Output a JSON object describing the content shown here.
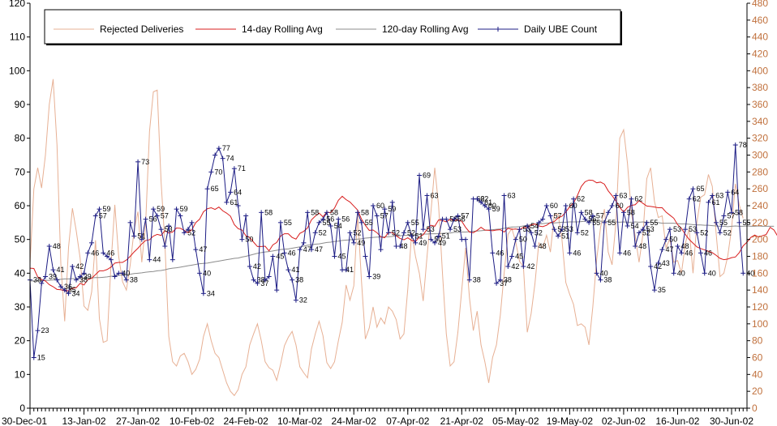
{
  "chart_data": {
    "type": "line",
    "title": "",
    "xlabel": "",
    "ylabel": "",
    "ylabel_right": "",
    "grid": "none",
    "legend": "top-left",
    "colors": {
      "rejected": "#e7b094",
      "rolling14": "#d81e1e",
      "rolling120": "#8c8c8c",
      "ube": "#1c1c84",
      "right_axis": "#c0703c",
      "frame": "#000000"
    },
    "left_axis": {
      "min": 0,
      "max": 120,
      "ticks": [
        0,
        10,
        20,
        30,
        40,
        50,
        60,
        70,
        80,
        90,
        100,
        110,
        120
      ]
    },
    "right_axis": {
      "min": 0,
      "max": 480,
      "ticks": [
        0,
        20,
        40,
        60,
        80,
        100,
        120,
        140,
        160,
        180,
        200,
        220,
        240,
        260,
        280,
        300,
        320,
        340,
        360,
        380,
        400,
        420,
        440,
        460,
        480
      ]
    },
    "x_axis": {
      "start_date": "30-Dec-01",
      "days": 186,
      "tick_labels": [
        "30-Dec-01",
        "13-Jan-02",
        "27-Jan-02",
        "10-Feb-02",
        "24-Feb-02",
        "10-Mar-02",
        "24-Mar-02",
        "07-Apr-02",
        "21-Apr-02",
        "05-May-02",
        "19-May-02",
        "02-Jun-02",
        "16-Jun-02",
        "30-Jun-02"
      ],
      "tick_days": [
        0,
        14,
        28,
        42,
        56,
        70,
        84,
        98,
        112,
        126,
        140,
        154,
        168,
        182
      ]
    },
    "legend_entries": [
      "Rejected Deliveries",
      "14-day Rolling Avg",
      "120-day Rolling Avg",
      "Daily UBE Count"
    ],
    "series": [
      {
        "name": "Daily UBE Count",
        "axis": "left",
        "labeled": true,
        "values": [
          38,
          15,
          23,
          37,
          39,
          48,
          41,
          38,
          36,
          35,
          34,
          42,
          38,
          39,
          40,
          46,
          49,
          57,
          59,
          46,
          45,
          44,
          39,
          40,
          40,
          38,
          55,
          51,
          73,
          50,
          56,
          44,
          59,
          57,
          53,
          48,
          54,
          44,
          59,
          57,
          52,
          53,
          55,
          47,
          40,
          34,
          65,
          70,
          75,
          77,
          74,
          61,
          64,
          71,
          60,
          50,
          57,
          42,
          38,
          37,
          58,
          38,
          39,
          45,
          35,
          55,
          46,
          41,
          38,
          32,
          47,
          49,
          58,
          47,
          52,
          55,
          56,
          58,
          54,
          45,
          56,
          41,
          41,
          52,
          49,
          58,
          55,
          45,
          39,
          60,
          57,
          47,
          59,
          52,
          61,
          48,
          48,
          52,
          55,
          51,
          49,
          69,
          53,
          63,
          50,
          49,
          51,
          56,
          56,
          53,
          56,
          57,
          50,
          50,
          38,
          62,
          62,
          61,
          60,
          59,
          46,
          37,
          38,
          63,
          42,
          45,
          50,
          53,
          42,
          54,
          52,
          48,
          55,
          56,
          60,
          57,
          53,
          51,
          53,
          60,
          46,
          62,
          52,
          58,
          56,
          55,
          57,
          40,
          38,
          55,
          58,
          60,
          63,
          46,
          58,
          54,
          62,
          48,
          52,
          53,
          55,
          42,
          35,
          43,
          47,
          50,
          53,
          40,
          48,
          46,
          53,
          62,
          65,
          52,
          46,
          40,
          61,
          63,
          55,
          52,
          57,
          64,
          58,
          78,
          55,
          40
        ],
        "labels": [
          38,
          15,
          23,
          null,
          39,
          48,
          41,
          null,
          36,
          35,
          34,
          42,
          38,
          39,
          null,
          46,
          null,
          57,
          59,
          46,
          null,
          null,
          null,
          40,
          null,
          38,
          null,
          51,
          73,
          null,
          56,
          44,
          59,
          57,
          53,
          null,
          null,
          null,
          59,
          null,
          52,
          null,
          null,
          47,
          40,
          34,
          65,
          70,
          null,
          77,
          74,
          61,
          64,
          71,
          null,
          50,
          null,
          42,
          38,
          37,
          58,
          null,
          null,
          45,
          null,
          55,
          46,
          41,
          38,
          32,
          47,
          null,
          58,
          47,
          52,
          55,
          56,
          58,
          54,
          45,
          56,
          41,
          null,
          52,
          49,
          58,
          55,
          null,
          39,
          60,
          57,
          null,
          59,
          52,
          null,
          48,
          null,
          52,
          55,
          51,
          49,
          69,
          53,
          63,
          50,
          49,
          51,
          null,
          56,
          53,
          56,
          57,
          null,
          null,
          38,
          62,
          62,
          61,
          60,
          59,
          46,
          37,
          38,
          63,
          42,
          45,
          50,
          53,
          42,
          54,
          52,
          48,
          null,
          null,
          60,
          57,
          53,
          51,
          53,
          60,
          46,
          62,
          52,
          58,
          56,
          55,
          57,
          40,
          38,
          55,
          null,
          60,
          63,
          46,
          58,
          54,
          62,
          48,
          52,
          53,
          55,
          42,
          35,
          43,
          47,
          50,
          53,
          40,
          48,
          46,
          53,
          62,
          65,
          52,
          46,
          40,
          61,
          63,
          55,
          52,
          57,
          64,
          58,
          78,
          55,
          40
        ]
      },
      {
        "name": "14-day Rolling Avg",
        "axis": "left",
        "values": [
          41.5,
          41.4,
          38.9,
          38.1,
          37.7,
          36.6,
          36.0,
          35.2,
          35.1,
          34.8,
          34.8,
          35.5,
          35.7,
          37.0,
          36.5,
          38.1,
          38.5,
          39.6,
          40.7,
          40.7,
          41.1,
          41.8,
          43.0,
          43.2,
          43.2,
          43.9,
          45.0,
          46.3,
          47.4,
          48.7,
          49.7,
          49.9,
          51.0,
          51.5,
          51.2,
          52.6,
          51.9,
          52.2,
          53.4,
          53.3,
          52.7,
          52.0,
          52.9,
          55.0,
          56.0,
          58.2,
          59.1,
          59.4,
          58.9,
          59.6,
          58.5,
          57.8,
          56.9,
          54.4,
          53.2,
          52.8,
          51.1,
          50.6,
          49.2,
          47.9,
          47.9,
          48.0,
          46.6,
          48.4,
          49.1,
          51.0,
          51.7,
          51.7,
          50.6,
          50.1,
          51.8,
          52.4,
          53.4,
          55.8,
          56.9,
          57.8,
          56.7,
          58.1,
          57.9,
          59.3,
          61.6,
          62.8,
          61.8,
          61.1,
          59.9,
          58.7,
          56.0,
          54.2,
          52.7,
          52.8,
          52.0,
          50.8,
          50.5,
          52.1,
          52.0,
          51.1,
          50.3,
          49.9,
          50.5,
          49.7,
          49.4,
          50.7,
          51.4,
          53.0,
          54.2,
          53.9,
          55.8,
          55.6,
          55.2,
          56.0,
          55.6,
          55.8,
          55.4,
          53.6,
          52.2,
          52.0,
          52.7,
          53.6,
          52.8,
          52.7,
          52.6,
          52.8,
          52.9,
          52.2,
          53.3,
          53.0,
          53.1,
          52.9,
          53.6,
          53.4,
          54.3,
          54.6,
          54.0,
          53.8,
          54.2,
          55.0,
          55.3,
          56.4,
          56.9,
          58.1,
          59.7,
          60.8,
          63.0,
          65.7,
          67.1,
          67.6,
          67.5,
          66.8,
          67.0,
          66.4,
          64.4,
          63.0,
          61.4,
          59.5,
          58.1,
          59.5,
          60.1,
          60.3,
          61.5,
          60.7,
          59.9,
          59.8,
          59.6,
          59.4,
          59.4,
          58.1,
          57.2,
          56.3,
          54.4,
          53.3,
          51.5,
          50.0,
          48.9,
          47.8,
          47.3,
          46.9,
          46.5,
          46.1,
          45.3,
          44.4,
          44.0,
          44.2,
          44.6,
          44.8,
          46.1,
          48.1,
          49.2,
          50.6,
          51.3,
          50.7,
          51.1,
          51.5,
          53.6,
          52.8,
          50.9,
          51.0
        ]
      },
      {
        "name": "120-day Rolling Avg",
        "axis": "left",
        "values": [
          37.7,
          37.7,
          37.8,
          37.8,
          37.9,
          37.9,
          38.0,
          38.1,
          38.2,
          38.3,
          38.3,
          38.4,
          38.4,
          38.4,
          38.5,
          38.6,
          38.6,
          38.7,
          38.7,
          38.8,
          38.9,
          39.1,
          39.2,
          39.4,
          39.5,
          39.6,
          39.7,
          39.9,
          40.0,
          40.1,
          40.3,
          40.4,
          40.5,
          40.7,
          40.8,
          41.0,
          41.3,
          41.5,
          41.6,
          41.8,
          42.0,
          42.2,
          42.4,
          42.6,
          42.8,
          42.9,
          43.0,
          43.2,
          43.4,
          43.6,
          43.8,
          44.0,
          44.2,
          44.4,
          44.5,
          44.8,
          45.0,
          45.3,
          45.6,
          45.9,
          46.1,
          46.3,
          46.4,
          46.6,
          46.8,
          47.0,
          47.1,
          47.2,
          47.4,
          47.6,
          47.8,
          48.0,
          48.3,
          48.4,
          48.6,
          48.7,
          48.9,
          49.1,
          49.2,
          49.4,
          49.5,
          49.7,
          49.8,
          49.9,
          50.0,
          50.1,
          50.2,
          50.4,
          50.5,
          50.6,
          50.7,
          50.7,
          50.8,
          50.8,
          50.9,
          51.0,
          51.1,
          51.2,
          51.2,
          51.3,
          51.3,
          51.5,
          51.6,
          51.6,
          51.7,
          51.7,
          51.7,
          51.8,
          51.9,
          51.9,
          52.1,
          52.1,
          52.2,
          52.2,
          52.3,
          52.4,
          52.5,
          52.6,
          52.7,
          52.8,
          52.9,
          53.0,
          53.1,
          53.3,
          53.5,
          53.7,
          53.7,
          53.8,
          54.0,
          54.2,
          54.4,
          54.5,
          54.6,
          54.7,
          54.8,
          54.9,
          54.9,
          55.0,
          55.1,
          55.1,
          55.2,
          55.2,
          55.2,
          55.3,
          55.4,
          55.6,
          55.6,
          55.5,
          55.4,
          55.4,
          55.3,
          55.3,
          55.2,
          55.1,
          55.2,
          55.1,
          55.1,
          55.2,
          55.1,
          55.2,
          55.1,
          55.1,
          55.0,
          55.0,
          54.8,
          54.8,
          54.8,
          54.8,
          54.7,
          54.6,
          54.6,
          54.5,
          54.4,
          54.3,
          54.3,
          54.2,
          54.2,
          54.1,
          54.0,
          53.9,
          53.9,
          53.8,
          53.9,
          54.0,
          53.9,
          53.9,
          54.0,
          53.9,
          53.9,
          54.0,
          53.9,
          53.9,
          53.9,
          53.9
        ]
      },
      {
        "name": "Rejected Deliveries",
        "axis": "right",
        "values": [
          171,
          260,
          285,
          261,
          300,
          360,
          390,
          312,
          171,
          103,
          191,
          237,
          210,
          178,
          121,
          116,
          138,
          199,
          106,
          78,
          80,
          170,
          241,
          180,
          150,
          140,
          170,
          211,
          233,
          173,
          219,
          328,
          375,
          377,
          269,
          195,
          85,
          55,
          50,
          62,
          65,
          55,
          40,
          46,
          58,
          85,
          100,
          80,
          65,
          60,
          45,
          30,
          20,
          15,
          22,
          40,
          49,
          75,
          88,
          100,
          80,
          55,
          48,
          45,
          33,
          52,
          74,
          84,
          91,
          75,
          49,
          42,
          36,
          70,
          88,
          103,
          86,
          54,
          47,
          55,
          80,
          102,
          146,
          128,
          145,
          230,
          150,
          82,
          95,
          120,
          96,
          107,
          100,
          120,
          115,
          105,
          82,
          88,
          141,
          208,
          180,
          160,
          127,
          180,
          232,
          285,
          240,
          160,
          88,
          50,
          55,
          90,
          140,
          190,
          131,
          92,
          115,
          75,
          55,
          30,
          60,
          75,
          110,
          160,
          206,
          213,
          197,
          174,
          168,
          90,
          112,
          148,
          196,
          190,
          205,
          185,
          229,
          230,
          200,
          149,
          135,
          123,
          98,
          100,
          96,
          75,
          120,
          176,
          214,
          236,
          185,
          170,
          220,
          320,
          330,
          290,
          232,
          204,
          173,
          206,
          272,
          285,
          245,
          226,
          228,
          190,
          201,
          173,
          175,
          160,
          195,
          213,
          160,
          220,
          250,
          253,
          277,
          263,
          207,
          156,
          160,
          180,
          213,
          266,
          241,
          225
        ]
      }
    ]
  }
}
